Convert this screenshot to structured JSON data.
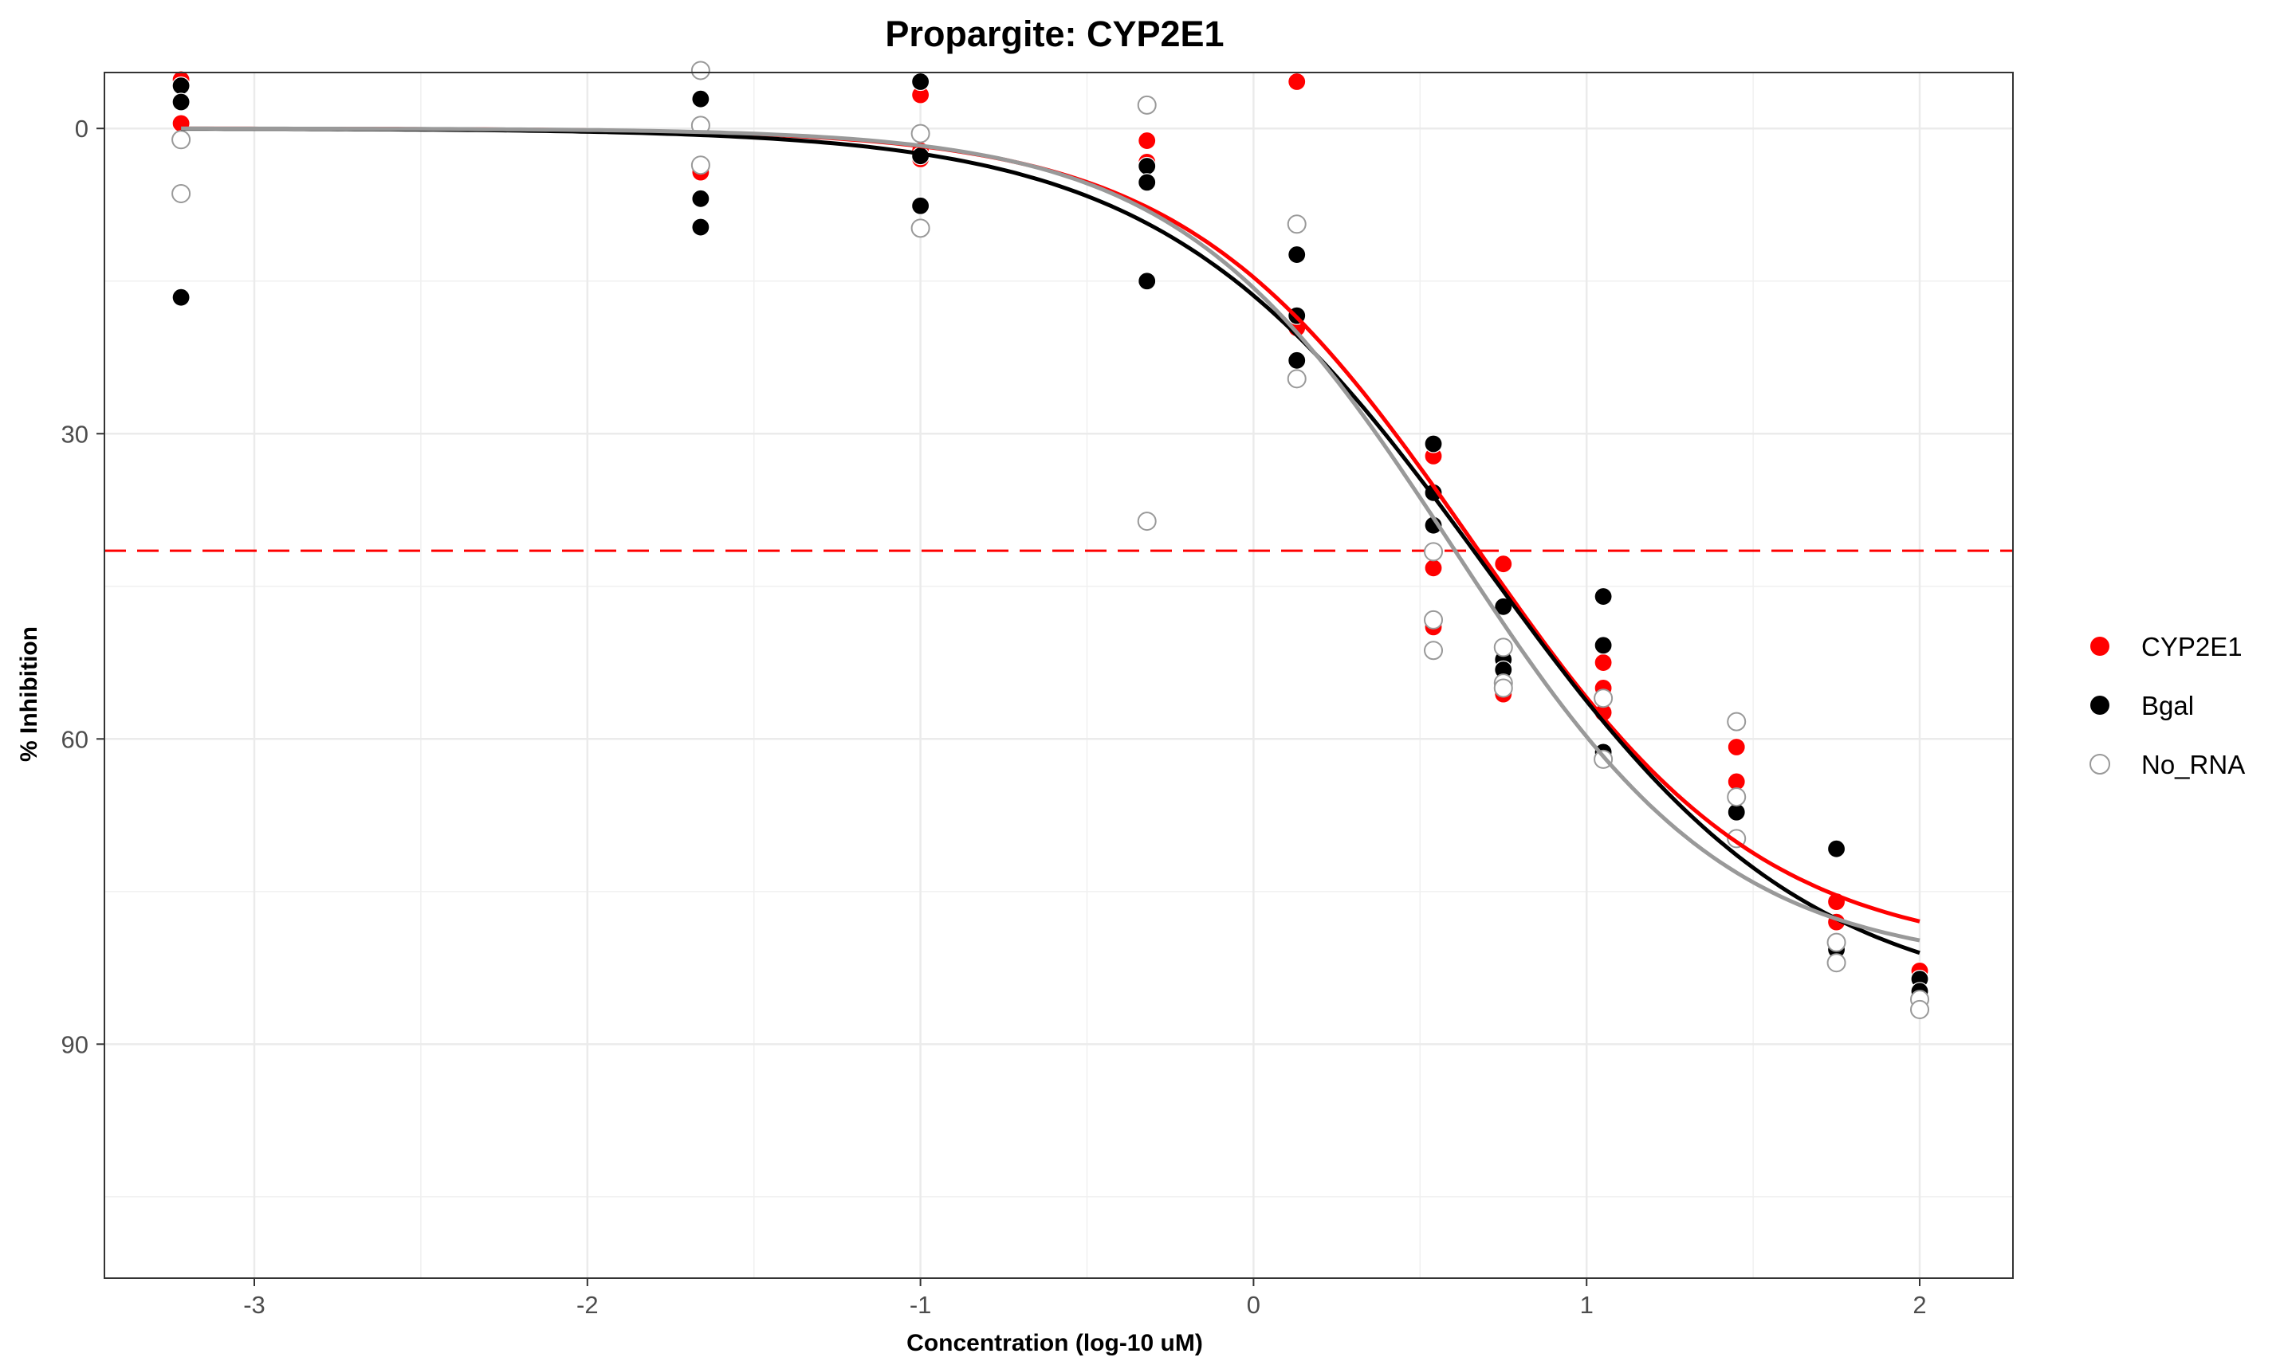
{
  "chart_data": {
    "type": "scatter",
    "title": "Propargite: CYP2E1",
    "xlabel": "Concentration (log-10 uM)",
    "ylabel": "% Inhibition",
    "xlim": [
      -3.45,
      2.28
    ],
    "ylim": [
      -5.5,
      113
    ],
    "y_reversed": true,
    "grid": true,
    "legend_position": "right",
    "x_ticks": [
      -3,
      -2,
      -1,
      0,
      1,
      2
    ],
    "y_ticks": [
      0,
      30,
      60,
      90
    ],
    "reference_line": {
      "y": 41.5,
      "style": "dashed",
      "color": "#ff0000"
    },
    "series": [
      {
        "name": "CYP2E1",
        "color": "#ff0000",
        "marker": "filled",
        "points": [
          [
            -3.22,
            -4.8
          ],
          [
            -3.22,
            -0.5
          ],
          [
            -1.66,
            4.3
          ],
          [
            -1.66,
            9.7
          ],
          [
            -1.0,
            -3.3
          ],
          [
            -1.0,
            3.0
          ],
          [
            -1.0,
            2.2
          ],
          [
            -0.32,
            1.2
          ],
          [
            -0.32,
            3.3
          ],
          [
            0.13,
            -4.6
          ],
          [
            0.13,
            19.6
          ],
          [
            0.54,
            32.2
          ],
          [
            0.54,
            43.2
          ],
          [
            0.54,
            49.0
          ],
          [
            0.75,
            42.8
          ],
          [
            0.75,
            55.6
          ],
          [
            1.05,
            52.5
          ],
          [
            1.05,
            55.0
          ],
          [
            1.05,
            57.4
          ],
          [
            1.45,
            60.8
          ],
          [
            1.45,
            64.2
          ],
          [
            1.75,
            76.0
          ],
          [
            1.75,
            78.0
          ],
          [
            2.0,
            82.8
          ],
          [
            2.0,
            85.0
          ]
        ],
        "curve": {
          "bottom": 0,
          "top": 81.5,
          "log_ic50": 0.66,
          "hill": 1.0
        }
      },
      {
        "name": "Bgal",
        "color": "#000000",
        "marker": "filled",
        "points": [
          [
            -3.22,
            -4.2
          ],
          [
            -3.22,
            -2.6
          ],
          [
            -3.22,
            16.6
          ],
          [
            -1.66,
            -2.9
          ],
          [
            -1.66,
            6.9
          ],
          [
            -1.66,
            9.7
          ],
          [
            -1.0,
            -4.6
          ],
          [
            -1.0,
            2.7
          ],
          [
            -1.0,
            7.6
          ],
          [
            -0.32,
            3.7
          ],
          [
            -0.32,
            5.3
          ],
          [
            -0.32,
            15.0
          ],
          [
            0.13,
            12.4
          ],
          [
            0.13,
            18.4
          ],
          [
            0.13,
            22.8
          ],
          [
            0.54,
            31.0
          ],
          [
            0.54,
            35.8
          ],
          [
            0.54,
            39.0
          ],
          [
            0.75,
            47.0
          ],
          [
            0.75,
            52.2
          ],
          [
            0.75,
            53.2
          ],
          [
            1.05,
            46.0
          ],
          [
            1.05,
            50.8
          ],
          [
            1.05,
            61.3
          ],
          [
            1.45,
            67.2
          ],
          [
            1.45,
            69.8
          ],
          [
            1.75,
            70.8
          ],
          [
            1.75,
            80.7
          ],
          [
            2.0,
            83.6
          ],
          [
            2.0,
            84.8
          ],
          [
            2.0,
            85.6
          ]
        ],
        "curve": {
          "bottom": 0,
          "top": 86.5,
          "log_ic50": 0.7,
          "hill": 0.9
        }
      },
      {
        "name": "No_RNA",
        "color": "#999999",
        "marker": "open",
        "points": [
          [
            -3.22,
            1.1
          ],
          [
            -3.22,
            6.4
          ],
          [
            -1.66,
            -5.7
          ],
          [
            -1.66,
            -0.3
          ],
          [
            -1.66,
            3.6
          ],
          [
            -1.0,
            0.5
          ],
          [
            -1.0,
            9.8
          ],
          [
            -0.32,
            -2.3
          ],
          [
            -0.32,
            38.6
          ],
          [
            0.13,
            9.4
          ],
          [
            0.13,
            24.6
          ],
          [
            0.54,
            41.6
          ],
          [
            0.54,
            48.3
          ],
          [
            0.54,
            51.3
          ],
          [
            0.75,
            51.0
          ],
          [
            0.75,
            54.5
          ],
          [
            0.75,
            55.0
          ],
          [
            1.05,
            56.0
          ],
          [
            1.05,
            62.0
          ],
          [
            1.45,
            58.3
          ],
          [
            1.45,
            65.7
          ],
          [
            1.45,
            69.8
          ],
          [
            1.75,
            80.0
          ],
          [
            1.75,
            82.0
          ],
          [
            2.0,
            85.6
          ],
          [
            2.0,
            86.6
          ]
        ],
        "curve": {
          "bottom": 0,
          "top": 82.5,
          "log_ic50": 0.6,
          "hill": 1.05
        }
      }
    ]
  }
}
